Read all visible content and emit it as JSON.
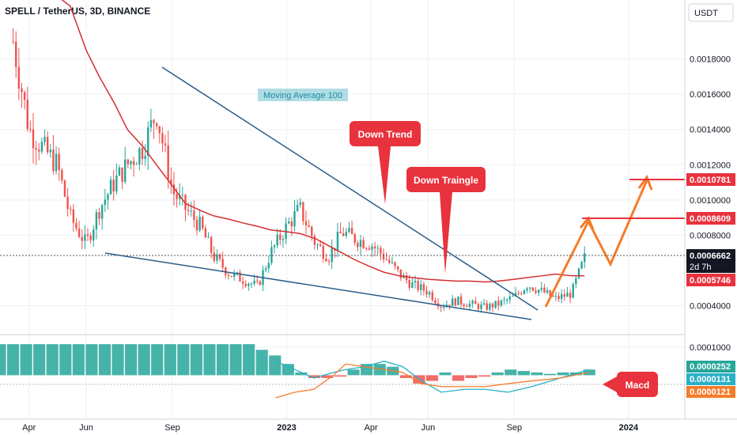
{
  "header": {
    "title": "SPELL / TetherUS, 3D, BINANCE"
  },
  "currency_button": {
    "label": "USDT"
  },
  "colors": {
    "up": "#26a69a",
    "down": "#ef5350",
    "ma": "#d32f2f",
    "trendline": "#2a5d8a",
    "arrow": "#f57c2a",
    "macd_line": "#2ab0c8",
    "signal_line": "#f57c2a",
    "callout": "#e8323d"
  },
  "chart_data": [
    {
      "type": "candlestick",
      "title": "SPELL / TetherUS, 3D, BINANCE",
      "x_tick_labels": [
        "Apr",
        "Jun",
        "Sep",
        "2023",
        "Apr",
        "Jun",
        "Sep",
        "2024"
      ],
      "y_tick_labels": [
        "0.0018000",
        "0.0016000",
        "0.0014000",
        "0.0012000",
        "0.0010000",
        "0.0008000",
        "0.0004000"
      ],
      "y_ticks": [
        0.0018,
        0.0016,
        0.0014,
        0.0012,
        0.001,
        0.0008,
        0.0004
      ],
      "ylim": [
        0.00025,
        0.002
      ],
      "x_start": "2022-03-01",
      "x_end": "2024-03-01",
      "dates": [
        "2022-03-15",
        "2022-04-01",
        "2022-04-15",
        "2022-05-01",
        "2022-05-15",
        "2022-06-01",
        "2022-06-15",
        "2022-07-01",
        "2022-07-15",
        "2022-08-01",
        "2022-08-15",
        "2022-09-01",
        "2022-09-15",
        "2022-10-01",
        "2022-10-15",
        "2022-11-01",
        "2022-11-15",
        "2022-12-01",
        "2022-12-15",
        "2023-01-01",
        "2023-01-15",
        "2023-02-01",
        "2023-02-15",
        "2023-03-01",
        "2023-03-15",
        "2023-04-01",
        "2023-04-15",
        "2023-05-01",
        "2023-05-15",
        "2023-06-01",
        "2023-06-15",
        "2023-07-01",
        "2023-07-15",
        "2023-08-01",
        "2023-08-15",
        "2023-09-01",
        "2023-09-15",
        "2023-10-01",
        "2023-10-15",
        "2023-11-01",
        "2023-11-15"
      ],
      "close": [
        0.0019,
        0.0014,
        0.0013,
        0.0012,
        0.0009,
        0.00075,
        0.00095,
        0.0011,
        0.0012,
        0.0013,
        0.0015,
        0.00105,
        0.00095,
        0.00085,
        0.00068,
        0.00058,
        0.00055,
        0.00051,
        0.0007,
        0.00085,
        0.00095,
        0.00075,
        0.00068,
        0.00082,
        0.00078,
        0.00075,
        0.00068,
        0.00058,
        0.00052,
        0.00048,
        0.0004,
        0.00043,
        0.00041,
        0.00039,
        0.00041,
        0.00045,
        0.00052,
        0.00048,
        0.00044,
        0.00047,
        0.00067
      ],
      "moving_average_100": [
        0.0052,
        0.004,
        0.0032,
        0.0026,
        0.0021,
        0.00185,
        0.0017,
        0.00155,
        0.0014,
        0.0013,
        0.0012,
        0.00108,
        0.00098,
        0.00094,
        0.00091,
        0.00089,
        0.00087,
        0.00085,
        0.00083,
        0.00082,
        0.00081,
        0.00078,
        0.00074,
        0.0007,
        0.00066,
        0.00062,
        0.00059,
        0.00057,
        0.00056,
        0.00055,
        0.000545,
        0.00054,
        0.00054,
        0.000535,
        0.00054,
        0.00055,
        0.00056,
        0.00057,
        0.00058,
        0.00057,
        0.00057
      ],
      "price_labels": {
        "target_high": "0.0010781",
        "target_mid": "0.0008609",
        "last_price": "0.0006662",
        "countdown": "2d 7h",
        "moving_average_value": "0.0005746"
      },
      "annotations": [
        "Moving Average 100",
        "Down Trend",
        "Down Traingle"
      ]
    },
    {
      "type": "bar",
      "title": "Macd",
      "y_tick_labels": [
        "0.0001000"
      ],
      "y_ticks": [
        0.0001
      ],
      "ylim": [
        -0.00015,
        0.00013
      ],
      "histogram_start": "2022-03-01",
      "histogram_end": "2023-11-20",
      "histogram_values": [
        0.00011,
        0.00011,
        0.00011,
        0.00011,
        0.00011,
        0.00011,
        0.00011,
        0.00011,
        0.00011,
        0.00011,
        0.00011,
        0.00011,
        0.00011,
        0.00011,
        0.00011,
        0.00011,
        0.00011,
        0.00011,
        0.00011,
        0.00011,
        9e-05,
        7e-05,
        4e-05,
        1e-05,
        -1e-05,
        -1e-05,
        -5e-06,
        2e-05,
        4e-05,
        4e-05,
        3e-05,
        -1e-05,
        -3e-05,
        -2e-05,
        1e-05,
        -2e-05,
        -1e-05,
        -5e-06,
        1e-05,
        2e-05,
        1.5e-05,
        1e-05,
        5e-06,
        1e-05,
        1e-05,
        2e-05
      ],
      "macd_line": [
        5e-05,
        2e-05,
        -1e-05,
        1e-05,
        2e-05,
        3e-05,
        5e-05,
        3e-05,
        -2e-05,
        -6e-05,
        -5e-05,
        -5e-05,
        -6e-05,
        -4e-05,
        -1e-05,
        2e-05
      ],
      "signal_line": [
        -8e-05,
        -6e-05,
        -5e-05,
        0.0,
        4e-05,
        3e-05,
        2e-05,
        1e-05,
        -3e-05,
        -4e-05,
        -4e-05,
        -4e-05,
        -3e-05,
        -2e-05,
        -1e-05,
        1e-05
      ],
      "line_dates": [
        "2022-12-20",
        "2023-01-10",
        "2023-01-30",
        "2023-02-20",
        "2023-03-05",
        "2023-03-25",
        "2023-04-15",
        "2023-05-05",
        "2023-05-25",
        "2023-06-15",
        "2023-07-10",
        "2023-08-01",
        "2023-08-25",
        "2023-09-20",
        "2023-10-20",
        "2023-11-20"
      ],
      "value_labels": {
        "macd": "0.0000252",
        "signal": "0.0000131",
        "histogram": "0.0000121"
      }
    }
  ]
}
